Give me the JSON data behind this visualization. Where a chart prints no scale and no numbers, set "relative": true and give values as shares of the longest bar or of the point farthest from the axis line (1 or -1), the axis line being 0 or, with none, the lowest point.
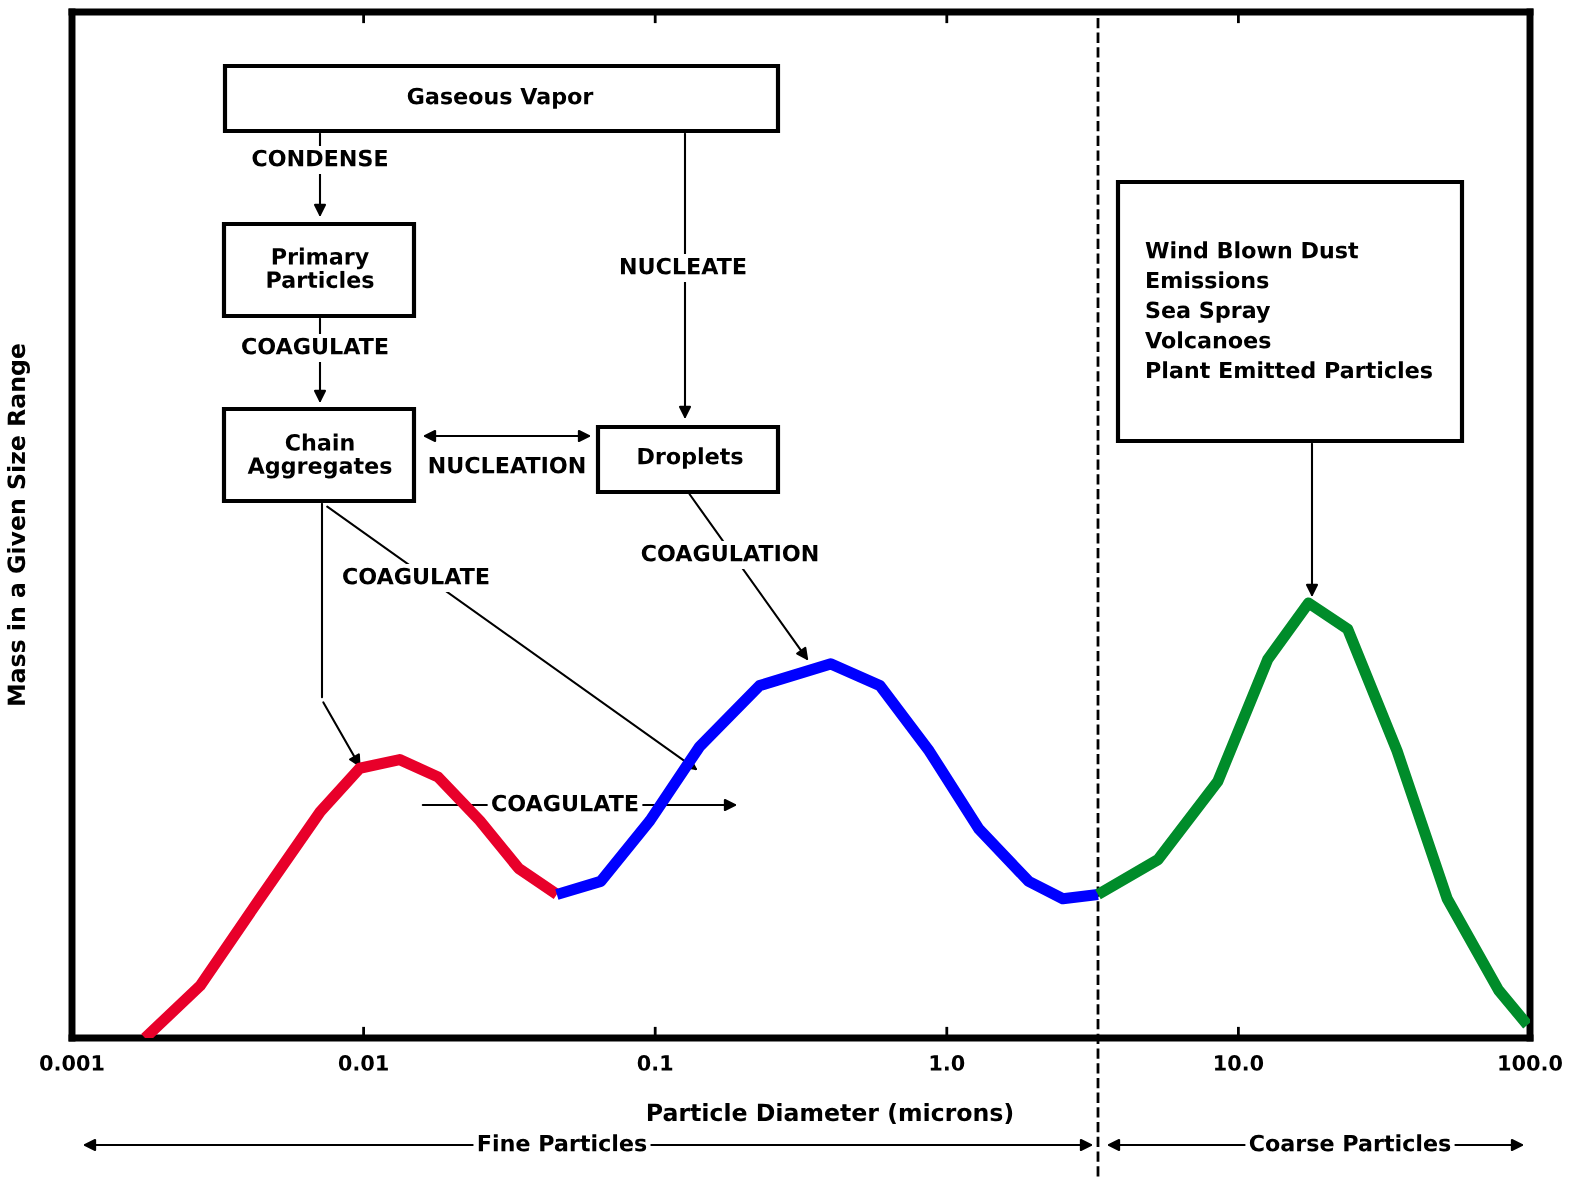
{
  "chart_data": {
    "type": "line",
    "relative": true,
    "log": "x",
    "xlabel": "Particle Diameter (microns)",
    "ylabel": "Mass in a Given Size Range",
    "xlim": [
      0.001,
      100
    ],
    "xticks": [
      0.001,
      0.01,
      0.1,
      {
        "value": 1,
        "label": "1.0"
      },
      {
        "value": 10,
        "label": "10.0"
      },
      {
        "value": 100,
        "label": "100.0"
      }
    ],
    "grid": false,
    "legend": false,
    "marker": "none",
    "line_style": "solid",
    "series": [
      {
        "color": "#e8002a",
        "x": [
          0.00178,
          0.00275,
          0.0044,
          0.0071,
          0.0097,
          0.0133,
          0.018,
          0.025,
          0.034,
          0.046
        ],
        "values": [
          0,
          0.12,
          0.32,
          0.52,
          0.62,
          0.64,
          0.6,
          0.5,
          0.39,
          0.33
        ]
      },
      {
        "color": "#0000ff",
        "x": [
          0.046,
          0.065,
          0.096,
          0.142,
          0.228,
          0.4,
          0.59,
          0.87,
          1.29,
          1.91,
          2.5,
          3.3
        ],
        "values": [
          0.33,
          0.36,
          0.5,
          0.67,
          0.81,
          0.86,
          0.81,
          0.66,
          0.48,
          0.36,
          0.32,
          0.33
        ]
      },
      {
        "color": "#008c2a",
        "x": [
          3.3,
          5.3,
          8.5,
          12.6,
          17.4,
          23.7,
          35,
          52,
          78,
          98
        ],
        "values": [
          0.33,
          0.41,
          0.59,
          0.87,
          1.0,
          0.94,
          0.66,
          0.32,
          0.11,
          0.03
        ]
      }
    ],
    "ref_lines": [
      {
        "axis": "x",
        "value": 3.3,
        "line_style": "dashed",
        "color": "#000000"
      }
    ],
    "annotations": [
      "Gaseous Vapor",
      "CONDENSE",
      "Primary\nParticles",
      "COAGULATE",
      "Chain\nAggregates",
      "NUCLEATION",
      "Droplets",
      "NUCLEATE",
      "COAGULATE",
      "COAGULATION",
      "COAGULATE",
      "Wind Blown Dust\nEmissions\nSea Spray\nVolcanoes\nPlant Emitted Particles",
      "Fine Particles",
      "Coarse Particles"
    ]
  }
}
